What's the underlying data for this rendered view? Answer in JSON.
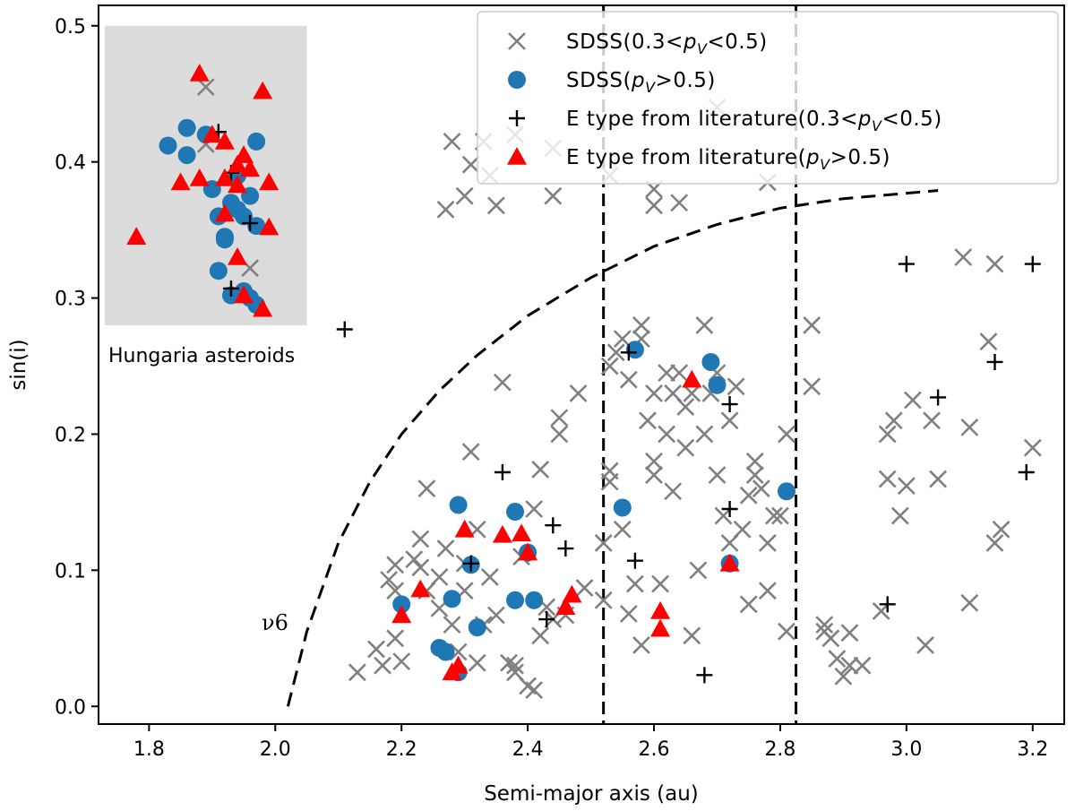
{
  "chart_data": {
    "type": "scatter",
    "xlabel": "Semi-major axis (au)",
    "ylabel": "sin(i)",
    "xlim": [
      1.72,
      3.25
    ],
    "ylim": [
      -0.013,
      0.515
    ],
    "x_ticks": [
      "1.8",
      "2.0",
      "2.2",
      "2.4",
      "2.6",
      "2.8",
      "3.0",
      "3.2"
    ],
    "y_ticks": [
      "0.0",
      "0.1",
      "0.2",
      "0.3",
      "0.4",
      "0.5"
    ],
    "legend_position": "top-right",
    "legend": [
      {
        "prefix": "SDSS(0.3<",
        "var": "p",
        "sub": "V",
        "suffix": "<0.5)",
        "marker": "x",
        "color": "#808080"
      },
      {
        "prefix": "SDSS(",
        "var": "p",
        "sub": "V",
        "suffix": ">0.5)",
        "marker": "circle",
        "color": "#1f77b4"
      },
      {
        "prefix": "E type from literature(0.3<",
        "var": "p",
        "sub": "V",
        "suffix": "<0.5)",
        "marker": "plus",
        "color": "#000000"
      },
      {
        "prefix": "E type from literature(",
        "var": "p",
        "sub": "V",
        "suffix": ">0.5)",
        "marker": "triangle",
        "color": "#ff0000"
      }
    ],
    "annotations": {
      "inset_label": "Hungaria asteroids",
      "resonance_label": "ν6"
    },
    "inset_region": {
      "x": [
        1.73,
        2.05
      ],
      "y": [
        0.28,
        0.5
      ],
      "color": "#dcdcdc"
    },
    "vertical_lines": [
      2.52,
      2.825
    ],
    "nu6_curve": [
      [
        2.02,
        0.0
      ],
      [
        2.05,
        0.055
      ],
      [
        2.1,
        0.12
      ],
      [
        2.15,
        0.165
      ],
      [
        2.2,
        0.2
      ],
      [
        2.26,
        0.232
      ],
      [
        2.32,
        0.258
      ],
      [
        2.4,
        0.287
      ],
      [
        2.5,
        0.315
      ],
      [
        2.6,
        0.338
      ],
      [
        2.7,
        0.354
      ],
      [
        2.8,
        0.366
      ],
      [
        2.9,
        0.373
      ],
      [
        3.0,
        0.377
      ],
      [
        3.05,
        0.379
      ]
    ],
    "series": [
      {
        "name": "SDSS(0.3<pV<0.5)",
        "marker": "x",
        "points": [
          [
            1.89,
            0.455
          ],
          [
            1.89,
            0.413
          ],
          [
            1.96,
            0.322
          ],
          [
            2.13,
            0.025
          ],
          [
            2.16,
            0.042
          ],
          [
            2.17,
            0.03
          ],
          [
            2.19,
            0.05
          ],
          [
            2.2,
            0.033
          ],
          [
            2.18,
            0.093
          ],
          [
            2.19,
            0.085
          ],
          [
            2.19,
            0.104
          ],
          [
            2.22,
            0.108
          ],
          [
            2.23,
            0.102
          ],
          [
            2.23,
            0.123
          ],
          [
            2.24,
            0.085
          ],
          [
            2.24,
            0.16
          ],
          [
            2.26,
            0.072
          ],
          [
            2.26,
            0.095
          ],
          [
            2.27,
            0.116
          ],
          [
            2.28,
            0.06
          ],
          [
            2.29,
            0.04
          ],
          [
            2.3,
            0.105
          ],
          [
            2.3,
            0.085
          ],
          [
            2.32,
            0.032
          ],
          [
            2.32,
            0.13
          ],
          [
            2.31,
            0.187
          ],
          [
            2.33,
            0.06
          ],
          [
            2.34,
            0.095
          ],
          [
            2.35,
            0.067
          ],
          [
            2.36,
            0.238
          ],
          [
            2.37,
            0.032
          ],
          [
            2.38,
            0.03
          ],
          [
            2.38,
            0.025
          ],
          [
            2.39,
            0.11
          ],
          [
            2.4,
            0.015
          ],
          [
            2.41,
            0.012
          ],
          [
            2.42,
            0.052
          ],
          [
            2.42,
            0.174
          ],
          [
            2.41,
            0.145
          ],
          [
            2.43,
            0.073
          ],
          [
            2.44,
            0.064
          ],
          [
            2.45,
            0.212
          ],
          [
            2.45,
            0.2
          ],
          [
            2.46,
            0.067
          ],
          [
            2.48,
            0.23
          ],
          [
            2.49,
            0.087
          ],
          [
            2.52,
            0.078
          ],
          [
            2.53,
            0.165
          ],
          [
            2.53,
            0.25
          ],
          [
            2.54,
            0.26
          ],
          [
            2.55,
            0.27
          ],
          [
            2.55,
            0.13
          ],
          [
            2.56,
            0.24
          ],
          [
            2.56,
            0.068
          ],
          [
            2.57,
            0.09
          ],
          [
            2.58,
            0.27
          ],
          [
            2.58,
            0.28
          ],
          [
            2.58,
            0.045
          ],
          [
            2.59,
            0.21
          ],
          [
            2.6,
            0.18
          ],
          [
            2.6,
            0.23
          ],
          [
            2.6,
            0.17
          ],
          [
            2.61,
            0.09
          ],
          [
            2.62,
            0.245
          ],
          [
            2.62,
            0.2
          ],
          [
            2.63,
            0.23
          ],
          [
            2.63,
            0.158
          ],
          [
            2.64,
            0.245
          ],
          [
            2.65,
            0.22
          ],
          [
            2.65,
            0.19
          ],
          [
            2.66,
            0.23
          ],
          [
            2.66,
            0.052
          ],
          [
            2.67,
            0.1
          ],
          [
            2.68,
            0.2
          ],
          [
            2.68,
            0.28
          ],
          [
            2.69,
            0.23
          ],
          [
            2.7,
            0.17
          ],
          [
            2.7,
            0.245
          ],
          [
            2.71,
            0.14
          ],
          [
            2.72,
            0.21
          ],
          [
            2.72,
            0.12
          ],
          [
            2.73,
            0.235
          ],
          [
            2.74,
            0.13
          ],
          [
            2.75,
            0.155
          ],
          [
            2.75,
            0.075
          ],
          [
            2.76,
            0.18
          ],
          [
            2.76,
            0.17
          ],
          [
            2.77,
            0.16
          ],
          [
            2.78,
            0.12
          ],
          [
            2.78,
            0.085
          ],
          [
            2.79,
            0.14
          ],
          [
            2.8,
            0.14
          ],
          [
            2.81,
            0.055
          ],
          [
            2.81,
            0.2
          ],
          [
            2.85,
            0.28
          ],
          [
            2.85,
            0.235
          ],
          [
            2.87,
            0.055
          ],
          [
            2.87,
            0.06
          ],
          [
            2.88,
            0.05
          ],
          [
            2.89,
            0.035
          ],
          [
            2.9,
            0.022
          ],
          [
            2.91,
            0.054
          ],
          [
            2.91,
            0.03
          ],
          [
            2.93,
            0.03
          ],
          [
            2.96,
            0.07
          ],
          [
            2.97,
            0.2
          ],
          [
            2.97,
            0.167
          ],
          [
            2.98,
            0.21
          ],
          [
            2.99,
            0.14
          ],
          [
            3.0,
            0.162
          ],
          [
            3.01,
            0.225
          ],
          [
            3.03,
            0.045
          ],
          [
            3.04,
            0.21
          ],
          [
            3.05,
            0.167
          ],
          [
            3.09,
            0.33
          ],
          [
            3.1,
            0.205
          ],
          [
            3.1,
            0.076
          ],
          [
            3.13,
            0.268
          ],
          [
            3.14,
            0.325
          ],
          [
            3.14,
            0.12
          ],
          [
            3.15,
            0.13
          ],
          [
            3.2,
            0.19
          ],
          [
            2.28,
            0.415
          ],
          [
            2.27,
            0.365
          ],
          [
            2.3,
            0.375
          ],
          [
            2.31,
            0.398
          ],
          [
            2.33,
            0.415
          ],
          [
            2.34,
            0.39
          ],
          [
            2.35,
            0.368
          ],
          [
            2.38,
            0.42
          ],
          [
            2.44,
            0.41
          ],
          [
            2.44,
            0.375
          ],
          [
            2.53,
            0.39
          ],
          [
            2.6,
            0.38
          ],
          [
            2.6,
            0.368
          ],
          [
            2.64,
            0.37
          ],
          [
            2.7,
            0.44
          ],
          [
            2.78,
            0.385
          ],
          [
            2.53,
            0.173
          ],
          [
            2.52,
            0.12
          ]
        ]
      },
      {
        "name": "SDSS(pV>0.5)",
        "marker": "circle",
        "points": [
          [
            1.83,
            0.412
          ],
          [
            1.86,
            0.425
          ],
          [
            1.86,
            0.405
          ],
          [
            1.89,
            0.42
          ],
          [
            1.9,
            0.38
          ],
          [
            1.91,
            0.36
          ],
          [
            1.92,
            0.345
          ],
          [
            1.93,
            0.37
          ],
          [
            1.94,
            0.39
          ],
          [
            1.95,
            0.36
          ],
          [
            1.96,
            0.375
          ],
          [
            1.97,
            0.415
          ],
          [
            1.97,
            0.353
          ],
          [
            1.91,
            0.32
          ],
          [
            1.93,
            0.302
          ],
          [
            1.96,
            0.3
          ],
          [
            1.97,
            0.295
          ],
          [
            1.95,
            0.305
          ],
          [
            1.92,
            0.343
          ],
          [
            1.94,
            0.365
          ],
          [
            2.2,
            0.075
          ],
          [
            2.26,
            0.043
          ],
          [
            2.27,
            0.04
          ],
          [
            2.28,
            0.079
          ],
          [
            2.29,
            0.025
          ],
          [
            2.29,
            0.148
          ],
          [
            2.31,
            0.104
          ],
          [
            2.32,
            0.058
          ],
          [
            2.38,
            0.143
          ],
          [
            2.38,
            0.078
          ],
          [
            2.4,
            0.113
          ],
          [
            2.41,
            0.078
          ],
          [
            2.55,
            0.146
          ],
          [
            2.57,
            0.262
          ],
          [
            2.69,
            0.253
          ],
          [
            2.7,
            0.236
          ],
          [
            2.72,
            0.105
          ],
          [
            2.81,
            0.158
          ]
        ]
      },
      {
        "name": "E type from literature(0.3<pV<0.5)",
        "marker": "plus",
        "points": [
          [
            1.91,
            0.422
          ],
          [
            1.93,
            0.392
          ],
          [
            1.96,
            0.355
          ],
          [
            1.93,
            0.307
          ],
          [
            2.11,
            0.277
          ],
          [
            2.31,
            0.105
          ],
          [
            2.36,
            0.172
          ],
          [
            2.43,
            0.064
          ],
          [
            2.44,
            0.133
          ],
          [
            2.46,
            0.116
          ],
          [
            2.56,
            0.26
          ],
          [
            2.57,
            0.107
          ],
          [
            2.68,
            0.023
          ],
          [
            2.72,
            0.145
          ],
          [
            2.72,
            0.222
          ],
          [
            2.97,
            0.075
          ],
          [
            3.0,
            0.325
          ],
          [
            3.05,
            0.227
          ],
          [
            3.14,
            0.253
          ],
          [
            3.19,
            0.172
          ],
          [
            3.2,
            0.325
          ]
        ]
      },
      {
        "name": "E type from literature(pV>0.5)",
        "marker": "triangle",
        "points": [
          [
            1.88,
            0.465
          ],
          [
            1.98,
            0.452
          ],
          [
            1.9,
            0.42
          ],
          [
            1.92,
            0.415
          ],
          [
            1.95,
            0.405
          ],
          [
            1.94,
            0.398
          ],
          [
            1.85,
            0.385
          ],
          [
            1.88,
            0.388
          ],
          [
            1.92,
            0.388
          ],
          [
            1.96,
            0.395
          ],
          [
            1.99,
            0.385
          ],
          [
            1.94,
            0.383
          ],
          [
            1.78,
            0.345
          ],
          [
            1.92,
            0.362
          ],
          [
            1.99,
            0.352
          ],
          [
            1.94,
            0.33
          ],
          [
            1.95,
            0.302
          ],
          [
            1.98,
            0.292
          ],
          [
            2.2,
            0.067
          ],
          [
            2.23,
            0.086
          ],
          [
            2.28,
            0.025
          ],
          [
            2.29,
            0.03
          ],
          [
            2.3,
            0.13
          ],
          [
            2.36,
            0.126
          ],
          [
            2.39,
            0.127
          ],
          [
            2.4,
            0.113
          ],
          [
            2.46,
            0.073
          ],
          [
            2.47,
            0.082
          ],
          [
            2.61,
            0.07
          ],
          [
            2.61,
            0.057
          ],
          [
            2.66,
            0.24
          ],
          [
            2.72,
            0.105
          ]
        ]
      }
    ]
  }
}
